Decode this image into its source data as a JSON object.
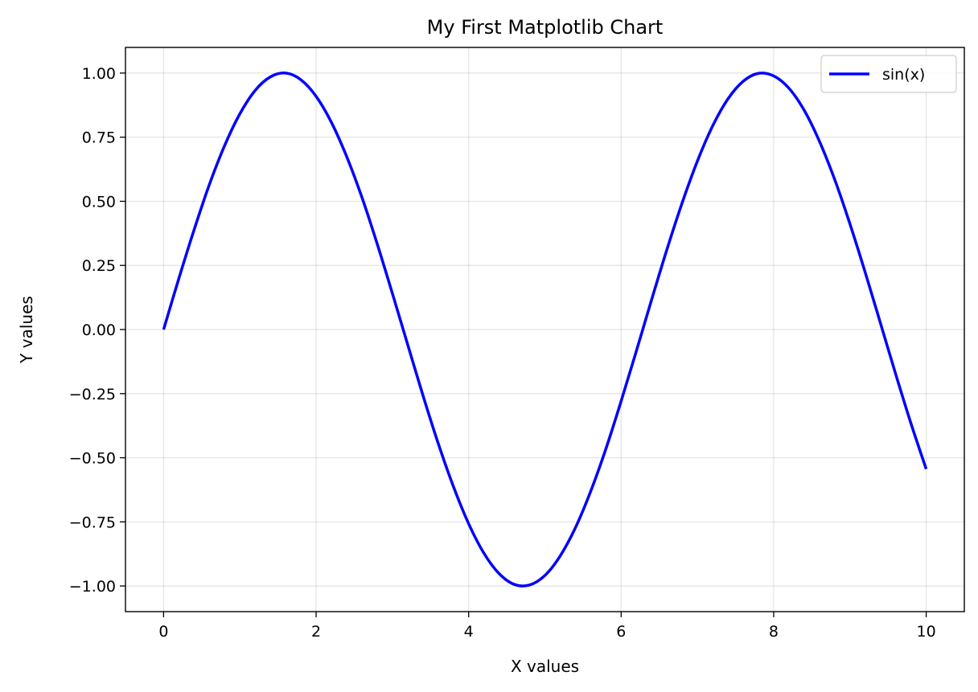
{
  "chart_data": {
    "type": "line",
    "title": "My First Matplotlib Chart",
    "xlabel": "X values",
    "ylabel": "Y values",
    "xlim": [
      -0.5,
      10.5
    ],
    "ylim": [
      -1.1,
      1.1
    ],
    "xticks": [
      0,
      2,
      4,
      6,
      8,
      10
    ],
    "xtick_labels": [
      "0",
      "2",
      "4",
      "6",
      "8",
      "10"
    ],
    "yticks": [
      -1.0,
      -0.75,
      -0.5,
      -0.25,
      0.0,
      0.25,
      0.5,
      0.75,
      1.0
    ],
    "ytick_labels": [
      "−1.00",
      "−0.75",
      "−0.50",
      "−0.25",
      "0.00",
      "0.25",
      "0.50",
      "0.75",
      "1.00"
    ],
    "grid": true,
    "legend_position": "top-right",
    "series": [
      {
        "name": "sin(x)",
        "color": "#0000ff",
        "x": [
          0,
          0.2,
          0.4,
          0.6,
          0.8,
          1.0,
          1.2,
          1.4,
          1.6,
          1.8,
          2.0,
          2.2,
          2.4,
          2.6,
          2.8,
          3.0,
          3.2,
          3.4,
          3.6,
          3.8,
          4.0,
          4.2,
          4.4,
          4.6,
          4.8,
          5.0,
          5.2,
          5.4,
          5.6,
          5.8,
          6.0,
          6.2,
          6.4,
          6.6,
          6.8,
          7.0,
          7.2,
          7.4,
          7.6,
          7.8,
          8.0,
          8.2,
          8.4,
          8.6,
          8.8,
          9.0,
          9.2,
          9.4,
          9.6,
          9.8,
          10.0
        ],
        "y": [
          0.0,
          0.199,
          0.389,
          0.565,
          0.717,
          0.841,
          0.932,
          0.985,
          1.0,
          0.974,
          0.909,
          0.808,
          0.675,
          0.516,
          0.335,
          0.141,
          -0.058,
          -0.256,
          -0.443,
          -0.612,
          -0.757,
          -0.872,
          -0.952,
          -0.994,
          -0.996,
          -0.959,
          -0.883,
          -0.773,
          -0.631,
          -0.465,
          -0.279,
          -0.083,
          0.117,
          0.312,
          0.494,
          0.657,
          0.794,
          0.899,
          0.968,
          0.999,
          0.989,
          0.941,
          0.855,
          0.734,
          0.585,
          0.412,
          0.223,
          0.025,
          -0.174,
          -0.366,
          -0.544
        ]
      }
    ]
  }
}
